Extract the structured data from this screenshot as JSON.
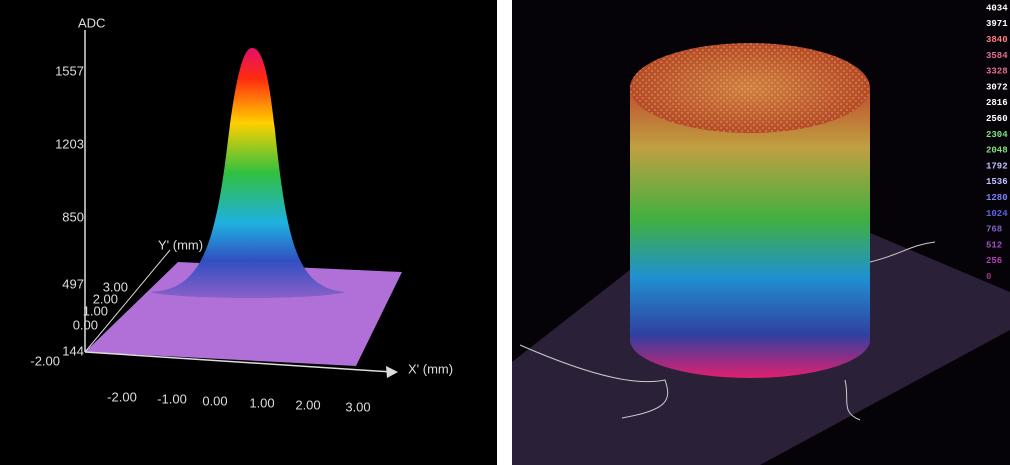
{
  "left_panel": {
    "z_axis": {
      "label": "ADC",
      "ticks": [
        "1557",
        "1203",
        "850",
        "497",
        "144"
      ]
    },
    "y_axis": {
      "label": "Y' (mm)",
      "ticks": [
        "3.00",
        "2.00",
        "1.00",
        "0.00",
        "-2.00"
      ]
    },
    "x_axis": {
      "label": "X' (mm)",
      "ticks": [
        "-2.00",
        "-1.00",
        "0.00",
        "1.00",
        "2.00",
        "3.00"
      ]
    }
  },
  "right_panel": {
    "scale_labels": [
      "4034",
      "3971",
      "3840",
      "3584",
      "3328",
      "3072",
      "2816",
      "2560",
      "2304",
      "2048",
      "1792",
      "1536",
      "1280",
      "1024",
      "768",
      "512",
      "256",
      "0"
    ]
  }
}
